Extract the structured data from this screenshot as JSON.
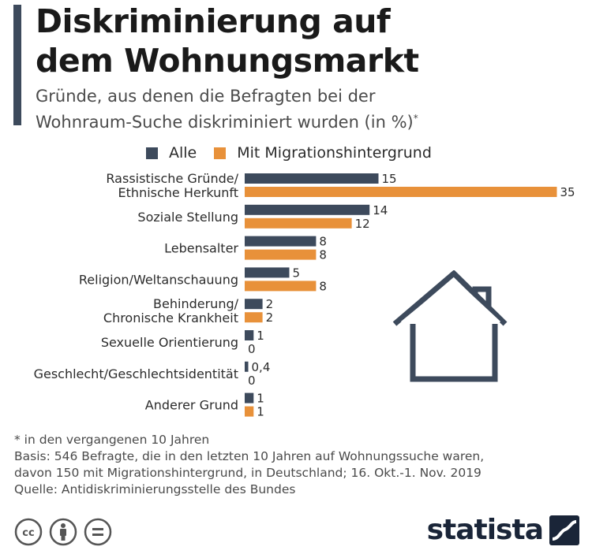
{
  "header": {
    "title_line1": "Diskriminierung auf",
    "title_line2": "dem Wohnungsmarkt",
    "subtitle_line1": "Gründe, aus denen die Befragten bei der",
    "subtitle_line2": "Wohnraum-Suche diskriminiert wurden (in %)",
    "subtitle_mark": "*"
  },
  "colors": {
    "accent": "#3d4a5c",
    "series_alle": "#3d4a5c",
    "series_migration": "#e8913a"
  },
  "legend": {
    "alle": "Alle",
    "migration": "Mit Migrationshintergrund"
  },
  "chart_data": {
    "type": "bar",
    "orientation": "horizontal",
    "title": "Diskriminierung auf dem Wohnungsmarkt",
    "subtitle": "Gründe, aus denen die Befragten bei der Wohnraum-Suche diskriminiert wurden (in %)*",
    "categories": [
      [
        "Rassistische Gründe/",
        "Ethnische Herkunft"
      ],
      [
        "Soziale Stellung"
      ],
      [
        "Lebensalter"
      ],
      [
        "Religion/Weltanschauung"
      ],
      [
        "Behinderung/",
        "Chronische Krankheit"
      ],
      [
        "Sexuelle Orientierung"
      ],
      [
        "Geschlecht/Geschlechtsidentität"
      ],
      [
        "Anderer Grund"
      ]
    ],
    "series": [
      {
        "name": "Alle",
        "values": [
          15,
          14,
          8,
          5,
          2,
          1,
          0.4,
          1
        ],
        "labels": [
          "15",
          "14",
          "8",
          "5",
          "2",
          "1",
          "0,4",
          "1"
        ]
      },
      {
        "name": "Mit Migrationshintergrund",
        "values": [
          35,
          12,
          8,
          8,
          2,
          0,
          0,
          1
        ],
        "labels": [
          "35",
          "12",
          "8",
          "8",
          "2",
          "0",
          "0",
          "1"
        ]
      }
    ],
    "xlim": [
      0,
      35
    ],
    "unit": "%",
    "legend_position": "top",
    "grid": false
  },
  "footnotes": {
    "asterisk": "* in den vergangenen 10 Jahren",
    "basis_line1": "Basis: 546 Befragte, die in den letzten 10 Jahren auf Wohnungssuche waren,",
    "basis_line2": "davon 150 mit Migrationshintergrund, in Deutschland; 16. Okt.-1. Nov. 2019",
    "source": "Quelle: Antidiskriminierungsstelle des Bundes"
  },
  "branding": {
    "logo_text": "statista",
    "icons": [
      "cc-icon",
      "attribution-icon",
      "no-derivatives-icon"
    ]
  }
}
